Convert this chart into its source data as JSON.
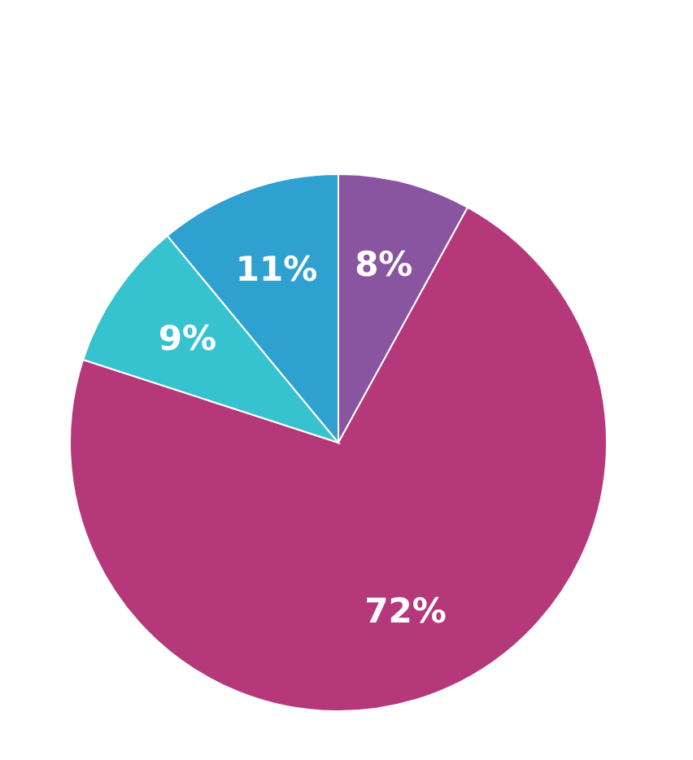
{
  "chart_data": {
    "type": "pie",
    "categories": [
      null,
      null,
      null,
      null
    ],
    "values": [
      8,
      72,
      9,
      11
    ],
    "colors": [
      "#8a55a0",
      "#b5397a",
      "#36c3cf",
      "#2ea1d1"
    ],
    "value_labels": [
      "8%",
      "72%",
      "9%",
      "11%"
    ]
  }
}
